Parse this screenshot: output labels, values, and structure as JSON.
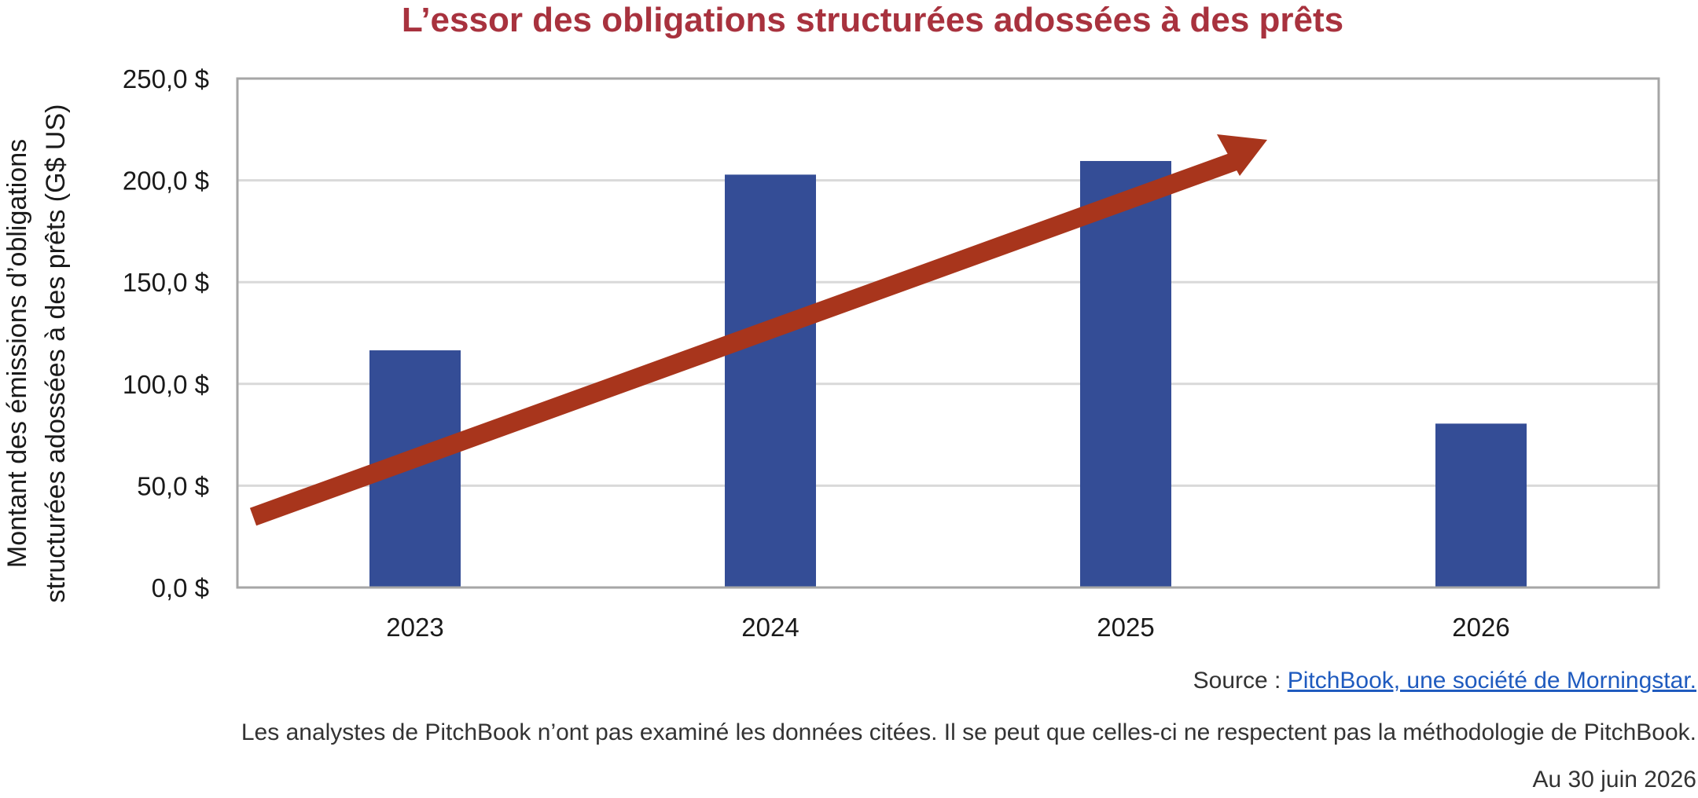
{
  "chart_data": {
    "type": "bar",
    "title": "L’essor des obligations structurées adossées à des prêts",
    "ylabel": "Montant des émissions d’obligations structurées adossées à des prêts (G$ US)",
    "ylabel_lines": [
      "Montant des émissions d’obligations",
      "structurées adossées à des prêts (G$ US)"
    ],
    "xlabel": "",
    "categories": [
      "2023",
      "2024",
      "2025",
      "2026"
    ],
    "values": [
      116.5,
      202.8,
      209.5,
      80.5
    ],
    "ylim": [
      0,
      250
    ],
    "yticks": [
      0,
      50,
      100,
      150,
      200,
      250
    ],
    "ytick_labels": [
      "0,0 $",
      "50,0 $",
      "100,0 $",
      "150,0 $",
      "200,0 $",
      "250,0 $"
    ],
    "grid": true,
    "legend": "none",
    "annotation": "trend-arrow",
    "colors": {
      "bar": "#344d96",
      "arrow": "#a8351c",
      "title": "#a8323e",
      "grid": "#d9d9d9",
      "frame": "#a6a6a6"
    }
  },
  "footer": {
    "source_label": "Source : ",
    "source_link": "PitchBook, une société de Morningstar.",
    "disclaimer": "Les analystes de PitchBook n’ont pas examiné les données citées. Il se peut que celles-ci ne respectent pas la méthodologie de PitchBook.",
    "date": "Au 30 juin 2026"
  }
}
